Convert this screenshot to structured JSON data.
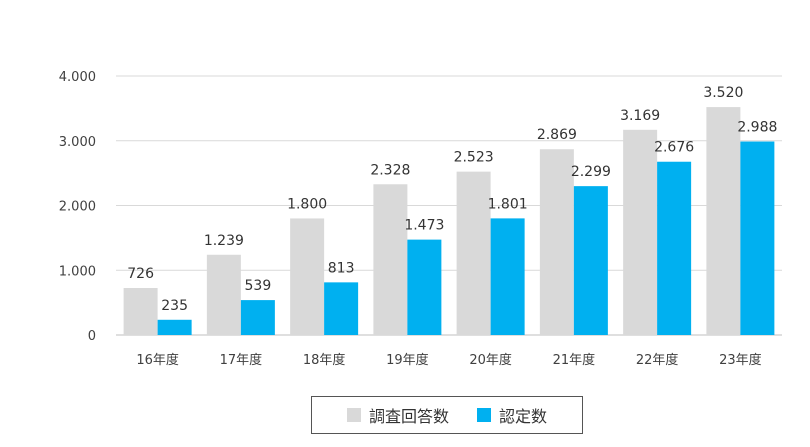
{
  "chart_data": {
    "type": "bar",
    "categories": [
      "16年度",
      "17年度",
      "18年度",
      "19年度",
      "20年度",
      "21年度",
      "22年度",
      "23年度"
    ],
    "series": [
      {
        "name": "調査回答数",
        "color": "#d9d9d9",
        "values": [
          726,
          1239,
          1800,
          2328,
          2523,
          2869,
          3169,
          3520
        ],
        "labels": [
          "726",
          "1.239",
          "1.800",
          "2.328",
          "2.523",
          "2.869",
          "3.169",
          "3.520"
        ]
      },
      {
        "name": "認定数",
        "color": "#00b0f0",
        "values": [
          235,
          539,
          813,
          1473,
          1801,
          2299,
          2676,
          2988
        ],
        "labels": [
          "235",
          "539",
          "813",
          "1.473",
          "1.801",
          "2.299",
          "2.676",
          "2.988"
        ]
      }
    ],
    "ylim": [
      0,
      4000
    ],
    "yticks": [
      0,
      1000,
      2000,
      3000,
      4000
    ],
    "ytick_labels": [
      "0",
      "1.000",
      "2.000",
      "3.000",
      "4.000"
    ],
    "grid": true,
    "legend": "bottom"
  }
}
